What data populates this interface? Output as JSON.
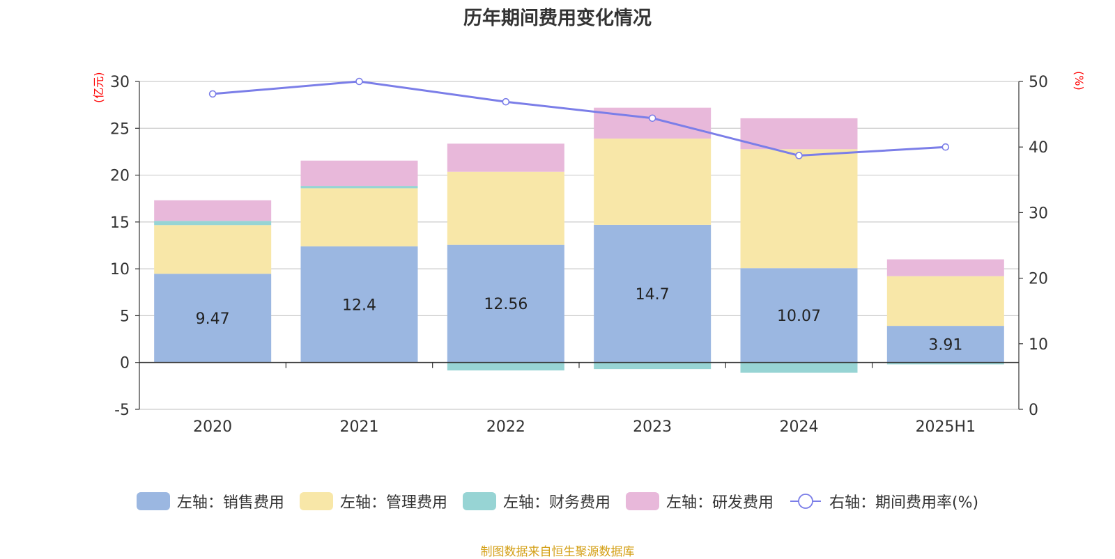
{
  "chart_data": {
    "type": "bar",
    "title": "历年期间费用变化情况",
    "categories": [
      "2020",
      "2021",
      "2022",
      "2023",
      "2024",
      "2025H1"
    ],
    "left_axis": {
      "unit_label": "(亿元)",
      "ylim": [
        -5,
        30
      ],
      "ticks": [
        -5,
        0,
        5,
        10,
        15,
        20,
        25,
        30
      ]
    },
    "right_axis": {
      "unit_label": "(%)",
      "ylim": [
        0,
        50
      ],
      "ticks": [
        0,
        10,
        20,
        30,
        40,
        50
      ]
    },
    "grid": true,
    "legend_position": "bottom",
    "series": [
      {
        "name": "左轴：销售费用",
        "type": "bar",
        "axis": "left",
        "color": "#9bb7e1",
        "values": [
          9.47,
          12.4,
          12.56,
          14.7,
          10.07,
          3.91
        ],
        "data_labels": [
          "9.47",
          "12.4",
          "12.56",
          "14.7",
          "10.07",
          "3.91"
        ]
      },
      {
        "name": "左轴：管理费用",
        "type": "bar",
        "axis": "left",
        "color": "#f8e7a8",
        "values": [
          5.2,
          6.2,
          7.8,
          9.2,
          12.7,
          5.3
        ]
      },
      {
        "name": "左轴：财务费用",
        "type": "bar",
        "axis": "left",
        "color": "#97d4d4",
        "values": [
          0.45,
          0.25,
          -0.85,
          -0.7,
          -1.1,
          -0.2
        ]
      },
      {
        "name": "左轴：研发费用",
        "type": "bar",
        "axis": "left",
        "color": "#e8b8da",
        "values": [
          2.2,
          2.7,
          3.0,
          3.3,
          3.3,
          1.8
        ]
      },
      {
        "name": "右轴：期间费用率(%)",
        "type": "line",
        "axis": "right",
        "color": "#7b7ee8",
        "values": [
          48.1,
          50.0,
          46.9,
          44.4,
          38.7,
          40.0
        ]
      }
    ]
  },
  "source_note": "制图数据来自恒生聚源数据库"
}
